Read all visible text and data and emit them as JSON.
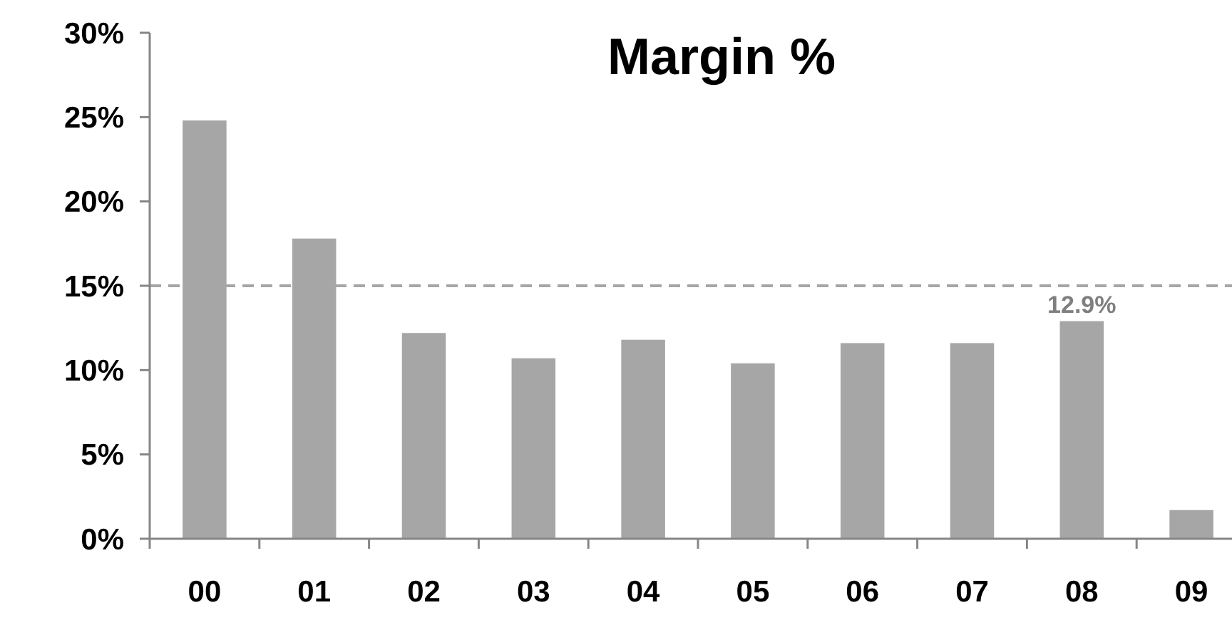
{
  "chart_data": {
    "type": "bar",
    "title": "Margin %",
    "categories": [
      "00",
      "01",
      "02",
      "03",
      "04",
      "05",
      "06",
      "07",
      "08",
      "09"
    ],
    "values": [
      24.8,
      17.8,
      12.2,
      10.7,
      11.8,
      10.4,
      11.6,
      11.6,
      12.9,
      1.7
    ],
    "value_labels": [
      null,
      null,
      null,
      null,
      null,
      null,
      null,
      null,
      "12.9%",
      null
    ],
    "color": "#a6a6a6",
    "ylim": [
      0,
      30
    ],
    "yticks": [
      {
        "value": 0,
        "label": "0%"
      },
      {
        "value": 5,
        "label": "5%"
      },
      {
        "value": 10,
        "label": "10%"
      },
      {
        "value": 15,
        "label": "15%"
      },
      {
        "value": 20,
        "label": "20%"
      },
      {
        "value": 25,
        "label": "25%"
      },
      {
        "value": 30,
        "label": "30%"
      }
    ],
    "ref_lines": [
      {
        "axis": "y",
        "value": 15,
        "color": "#a6a6a6",
        "line_style": "dashed"
      }
    ],
    "grid": false
  }
}
